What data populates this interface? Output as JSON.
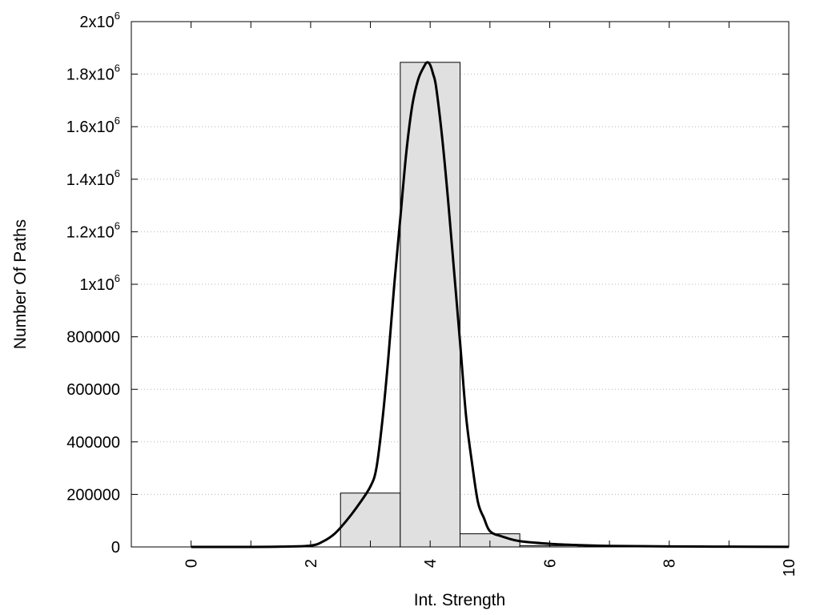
{
  "chart_data": {
    "type": "bar",
    "xlabel": "Int. Strength",
    "ylabel": "Number Of Paths",
    "xlim": [
      -1,
      10
    ],
    "ylim": [
      0,
      2000000
    ],
    "x_ticks": [
      {
        "value": 0,
        "label": "0"
      },
      {
        "value": 2,
        "label": "2"
      },
      {
        "value": 4,
        "label": "4"
      },
      {
        "value": 6,
        "label": "6"
      },
      {
        "value": 8,
        "label": "8"
      },
      {
        "value": 10,
        "label": "10"
      }
    ],
    "y_ticks": [
      {
        "value": 0,
        "label": "0",
        "exp": ""
      },
      {
        "value": 200000,
        "label": "200000",
        "exp": ""
      },
      {
        "value": 400000,
        "label": "400000",
        "exp": ""
      },
      {
        "value": 600000,
        "label": "600000",
        "exp": ""
      },
      {
        "value": 800000,
        "label": "800000",
        "exp": ""
      },
      {
        "value": 1000000,
        "label": "1x10",
        "exp": "6"
      },
      {
        "value": 1200000,
        "label": "1.2x10",
        "exp": "6"
      },
      {
        "value": 1400000,
        "label": "1.4x10",
        "exp": "6"
      },
      {
        "value": 1600000,
        "label": "1.6x10",
        "exp": "6"
      },
      {
        "value": 1800000,
        "label": "1.8x10",
        "exp": "6"
      },
      {
        "value": 2000000,
        "label": "2x10",
        "exp": "6"
      }
    ],
    "grid": "horizontal dotted",
    "bars": [
      {
        "x_start": 2.5,
        "x_end": 3.5,
        "value": 205000
      },
      {
        "x_start": 3.5,
        "x_end": 4.5,
        "value": 1845000
      },
      {
        "x_start": 4.5,
        "x_end": 5.5,
        "value": 50000
      },
      {
        "x_start": 5.5,
        "x_end": 6.5,
        "value": 5000
      }
    ],
    "curve": {
      "x": [
        0,
        1,
        1.5,
        2,
        2.2,
        2.4,
        2.6,
        2.8,
        3.0,
        3.1,
        3.2,
        3.3,
        3.4,
        3.5,
        3.6,
        3.7,
        3.8,
        3.9,
        3.95,
        4.0,
        4.05,
        4.1,
        4.2,
        4.3,
        4.4,
        4.5,
        4.6,
        4.7,
        4.8,
        4.9,
        5.0,
        5.2,
        5.5,
        6.0,
        6.5,
        7.0,
        8.0,
        9.0,
        10.0
      ],
      "y": [
        0,
        0,
        1000,
        5000,
        20000,
        50000,
        100000,
        160000,
        230000,
        300000,
        480000,
        720000,
        1000000,
        1250000,
        1500000,
        1680000,
        1780000,
        1830000,
        1845000,
        1835000,
        1800000,
        1750000,
        1560000,
        1320000,
        1050000,
        780000,
        500000,
        320000,
        170000,
        110000,
        60000,
        40000,
        22000,
        12000,
        7000,
        4000,
        2000,
        1000,
        500
      ]
    }
  }
}
